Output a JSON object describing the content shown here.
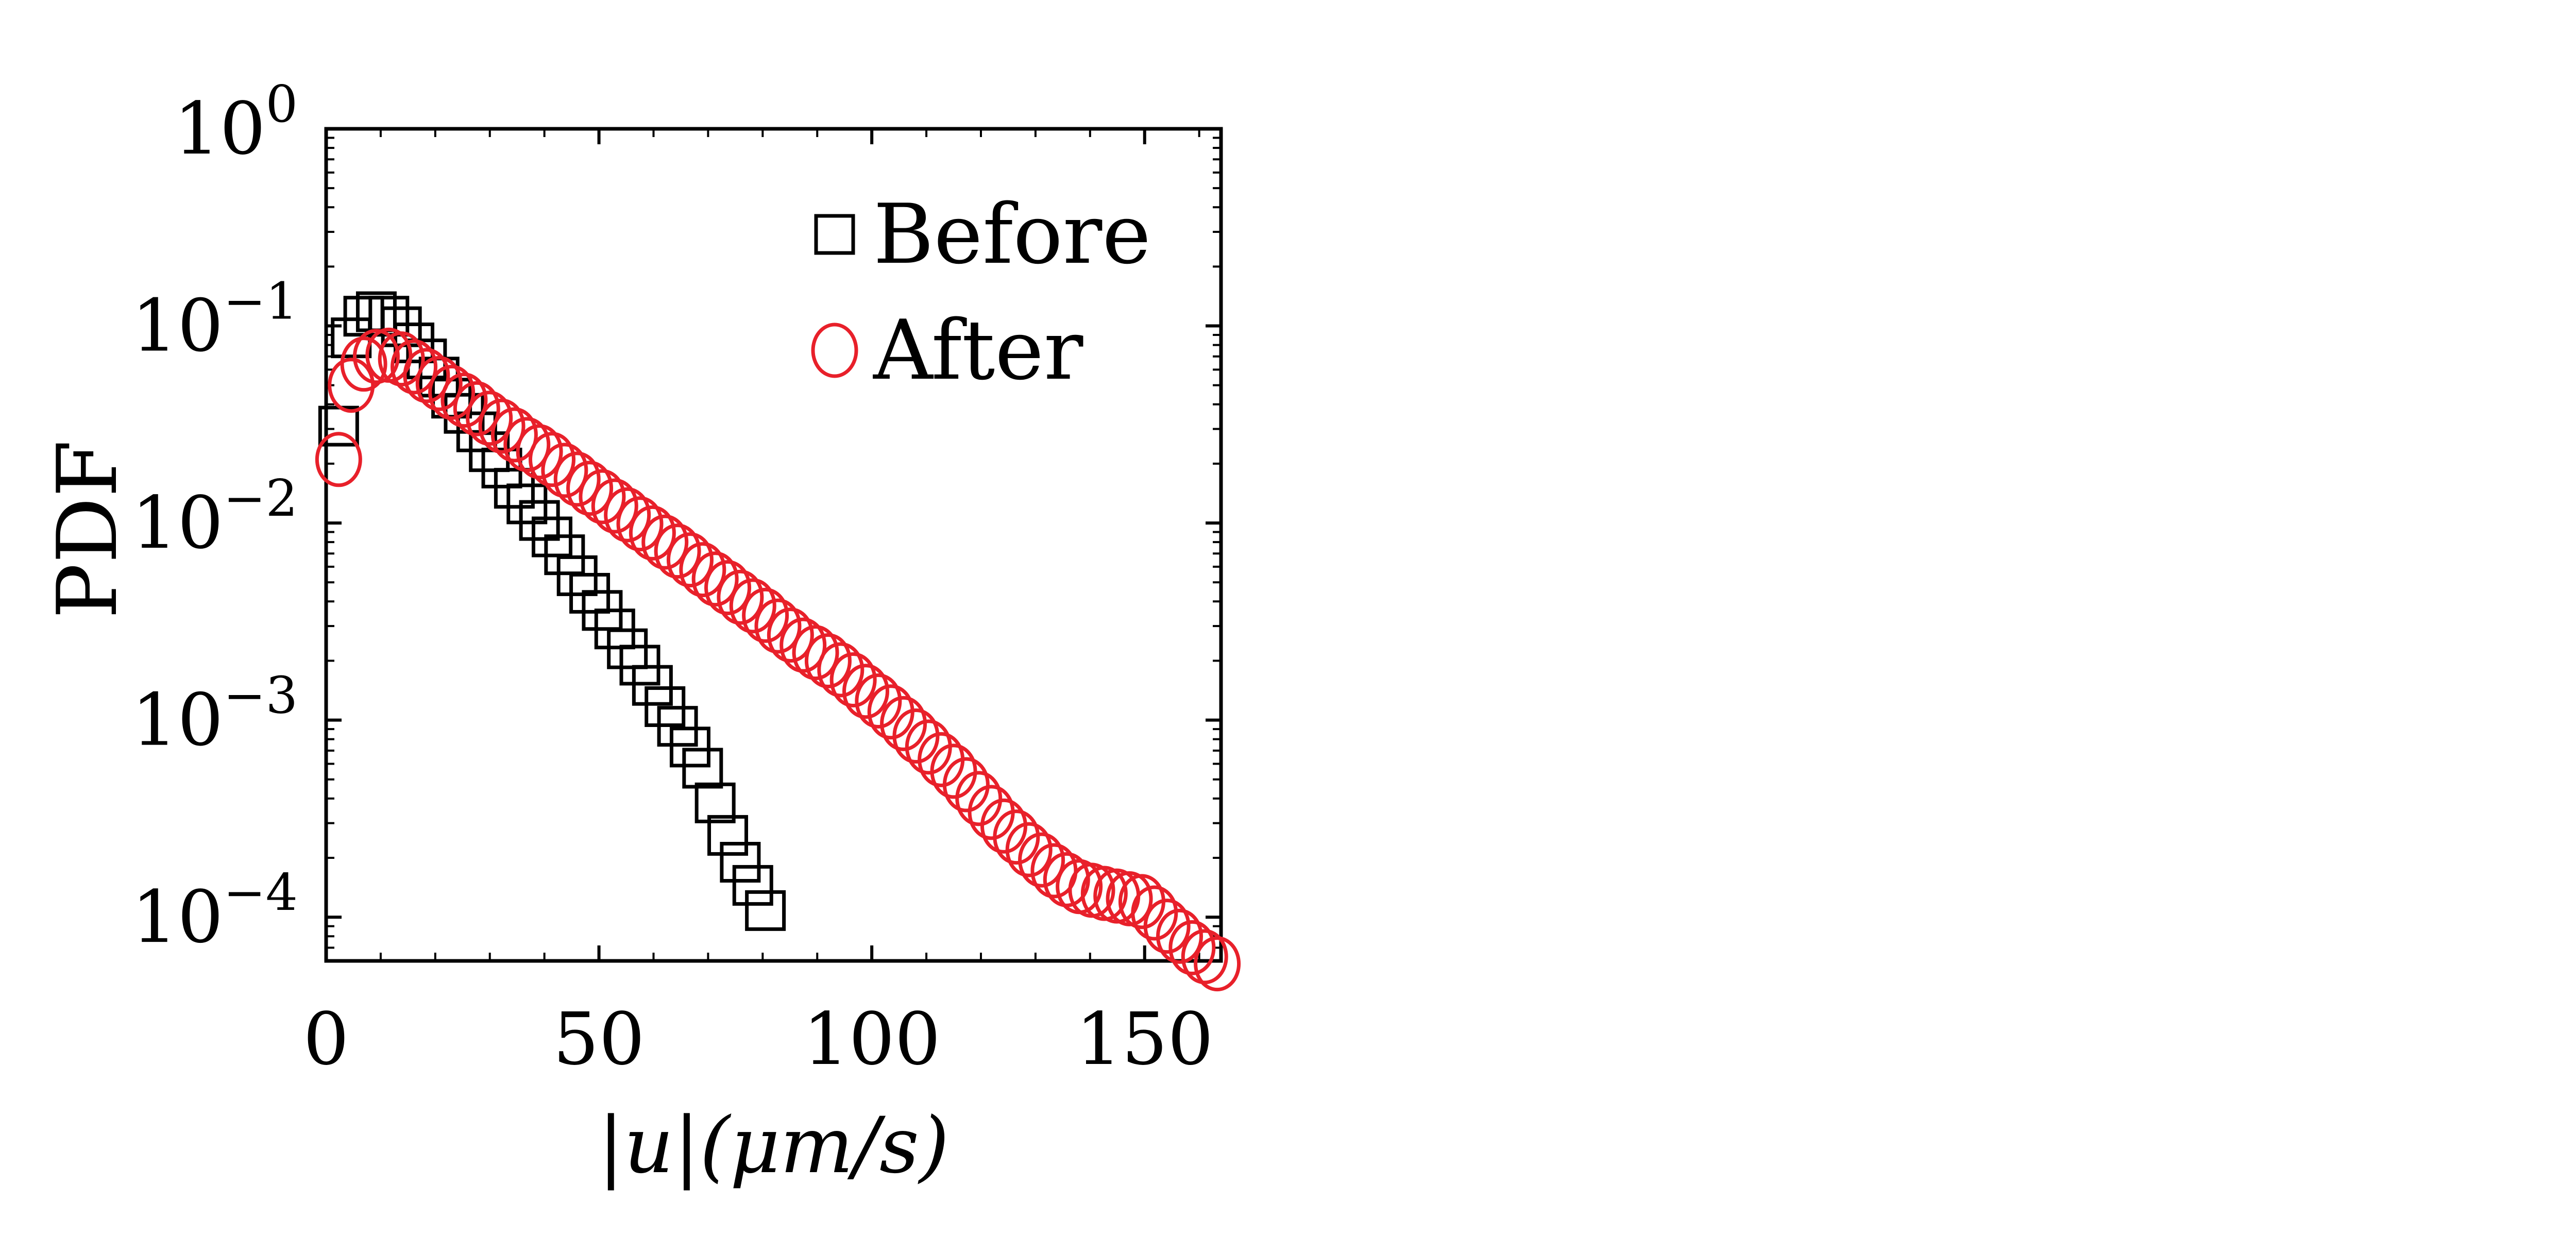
{
  "chart_data": {
    "type": "scatter",
    "xlabel": "|u|(μm/s)",
    "ylabel": "PDF",
    "xlim": [
      0,
      164
    ],
    "ylim": [
      6e-05,
      1
    ],
    "yscale": "log",
    "x_ticks": [
      0,
      50,
      100,
      150
    ],
    "y_ticks": [
      {
        "value": 1,
        "base": "10",
        "exp": "0"
      },
      {
        "value": 0.1,
        "base": "10",
        "exp": "−1"
      },
      {
        "value": 0.01,
        "base": "10",
        "exp": "−2"
      },
      {
        "value": 0.001,
        "base": "10",
        "exp": "−3"
      },
      {
        "value": 0.0001,
        "base": "10",
        "exp": "−4"
      }
    ],
    "grid": false,
    "legend_position": "top-right",
    "series": [
      {
        "name": "Before",
        "marker": "square",
        "color": "#000000",
        "points": [
          [
            2.3,
            0.031
          ],
          [
            4.6,
            0.087
          ],
          [
            6.9,
            0.112
          ],
          [
            9.2,
            0.118
          ],
          [
            11.5,
            0.112
          ],
          [
            13.8,
            0.099
          ],
          [
            16.1,
            0.082
          ],
          [
            18.4,
            0.068
          ],
          [
            20.7,
            0.055
          ],
          [
            23.0,
            0.043
          ],
          [
            25.3,
            0.036
          ],
          [
            27.6,
            0.029
          ],
          [
            29.9,
            0.023
          ],
          [
            32.2,
            0.019
          ],
          [
            34.5,
            0.015
          ],
          [
            36.8,
            0.0125
          ],
          [
            39.1,
            0.0103
          ],
          [
            41.4,
            0.0085
          ],
          [
            43.7,
            0.0069
          ],
          [
            46.0,
            0.0054
          ],
          [
            48.3,
            0.0044
          ],
          [
            50.6,
            0.0036
          ],
          [
            52.9,
            0.0029
          ],
          [
            55.2,
            0.0023
          ],
          [
            57.5,
            0.0019
          ],
          [
            59.8,
            0.0015
          ],
          [
            62.1,
            0.00117
          ],
          [
            64.4,
            0.00093
          ],
          [
            66.7,
            0.00073
          ],
          [
            69.0,
            0.00057
          ],
          [
            71.3,
            0.00038
          ],
          [
            73.6,
            0.00026
          ],
          [
            75.9,
            0.00019
          ],
          [
            78.2,
            0.000145
          ],
          [
            80.5,
            0.000108
          ]
        ]
      },
      {
        "name": "After",
        "marker": "circle",
        "color": "#e8202a",
        "points": [
          [
            2.3,
            0.021
          ],
          [
            4.6,
            0.05
          ],
          [
            6.9,
            0.064
          ],
          [
            9.2,
            0.07
          ],
          [
            11.5,
            0.071
          ],
          [
            13.8,
            0.068
          ],
          [
            16.1,
            0.062
          ],
          [
            18.4,
            0.056
          ],
          [
            20.7,
            0.051
          ],
          [
            23.0,
            0.046
          ],
          [
            25.3,
            0.042
          ],
          [
            27.6,
            0.038
          ],
          [
            29.9,
            0.034
          ],
          [
            32.2,
            0.031
          ],
          [
            34.5,
            0.028
          ],
          [
            36.8,
            0.025
          ],
          [
            39.1,
            0.023
          ],
          [
            41.4,
            0.021
          ],
          [
            43.7,
            0.0185
          ],
          [
            46.0,
            0.0167
          ],
          [
            48.3,
            0.015
          ],
          [
            50.6,
            0.0136
          ],
          [
            52.9,
            0.0122
          ],
          [
            55.2,
            0.011
          ],
          [
            57.5,
            0.0099
          ],
          [
            59.8,
            0.0089
          ],
          [
            62.1,
            0.008
          ],
          [
            64.4,
            0.0072
          ],
          [
            66.7,
            0.0065
          ],
          [
            69.0,
            0.0058
          ],
          [
            71.3,
            0.0052
          ],
          [
            73.6,
            0.0047
          ],
          [
            75.9,
            0.0042
          ],
          [
            78.2,
            0.0038
          ],
          [
            80.5,
            0.0034
          ],
          [
            82.8,
            0.003
          ],
          [
            85.1,
            0.0027
          ],
          [
            87.4,
            0.0024
          ],
          [
            89.7,
            0.0022
          ],
          [
            92.0,
            0.002
          ],
          [
            94.3,
            0.0018
          ],
          [
            96.6,
            0.0016
          ],
          [
            98.9,
            0.0014
          ],
          [
            101.2,
            0.00125
          ],
          [
            103.5,
            0.0011
          ],
          [
            105.8,
            0.00096
          ],
          [
            108.1,
            0.00083
          ],
          [
            110.4,
            0.00073
          ],
          [
            112.7,
            0.00063
          ],
          [
            115.0,
            0.00055
          ],
          [
            117.3,
            0.00047
          ],
          [
            119.6,
            0.0004
          ],
          [
            121.9,
            0.00034
          ],
          [
            124.2,
            0.00029
          ],
          [
            126.5,
            0.000255
          ],
          [
            128.8,
            0.00022
          ],
          [
            131.1,
            0.000195
          ],
          [
            133.4,
            0.000172
          ],
          [
            135.7,
            0.000155
          ],
          [
            138.0,
            0.000143
          ],
          [
            140.3,
            0.000137
          ],
          [
            142.6,
            0.000132
          ],
          [
            144.9,
            0.000128
          ],
          [
            147.2,
            0.000124
          ],
          [
            149.5,
            0.00012
          ],
          [
            151.8,
            0.000105
          ],
          [
            154.1,
            9e-05
          ],
          [
            156.4,
            8e-05
          ],
          [
            158.7,
            7e-05
          ],
          [
            161.0,
            6.3e-05
          ],
          [
            163.3,
            5.8e-05
          ]
        ]
      }
    ]
  }
}
